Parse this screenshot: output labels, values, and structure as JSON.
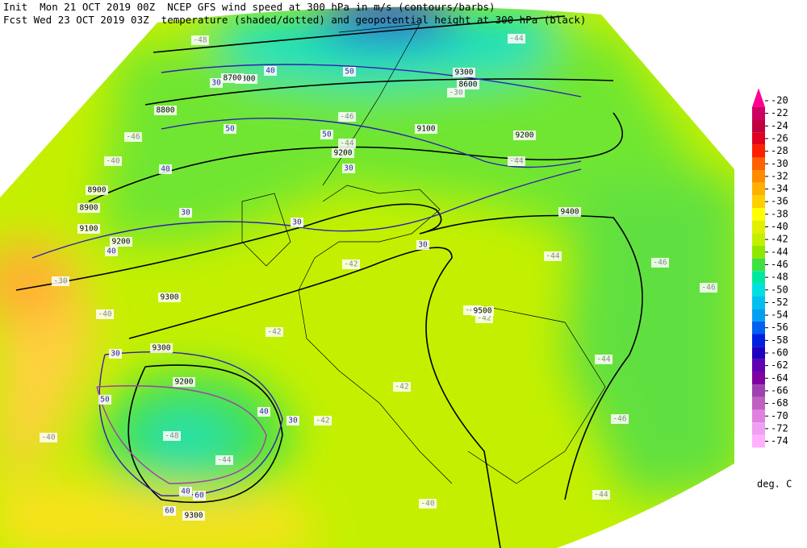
{
  "header": {
    "line1": "Init  Mon 21 OCT 2019 00Z  NCEP GFS wind speed at 300 hPa in m/s (contours/barbs)",
    "line2": "Fcst Wed 23 OCT 2019 03Z  temperature (shaded/dotted) and geopotential height at 300 hPa (black)"
  },
  "colorbar": {
    "labels": [
      "-20",
      "-22",
      "-24",
      "-26",
      "-28",
      "-30",
      "-32",
      "-34",
      "-36",
      "-38",
      "-40",
      "-42",
      "-44",
      "-46",
      "-48",
      "-50",
      "-52",
      "-54",
      "-56",
      "-58",
      "-60",
      "-62",
      "-64",
      "-66",
      "-68",
      "-70",
      "-72",
      "-74"
    ],
    "colors": [
      "#ff0090",
      "#d00060",
      "#c00040",
      "#e00020",
      "#ff2000",
      "#ff6000",
      "#ff8c00",
      "#ffb000",
      "#ffd000",
      "#ffff00",
      "#e0f000",
      "#c4f000",
      "#90e800",
      "#40e040",
      "#00e8a0",
      "#00e0e0",
      "#00c0f0",
      "#00a0f0",
      "#0060f0",
      "#0020e0",
      "#2000c0",
      "#6000b0",
      "#8000a0",
      "#a040b0",
      "#c060c0",
      "#e080e0",
      "#f0a0f0",
      "#ffb0ff"
    ],
    "unit": "deg. C"
  },
  "map_labels": [
    "-48",
    "-46",
    "-46",
    "-44",
    "-44",
    "-40",
    "-40",
    "-42",
    "-42",
    "-42",
    "-42",
    "-44",
    "-44",
    "-46",
    "-46",
    "-46",
    "-44",
    "-40",
    "-44",
    "-48",
    "-30",
    "-30",
    "-40",
    "-42",
    "-42",
    "-44",
    "9200",
    "9200",
    "9300",
    "9300",
    "9400",
    "9500",
    "9100",
    "8900",
    "8900",
    "8800",
    "8700",
    "8600",
    "9100",
    "9200",
    "9200",
    "9300",
    "9300",
    "9300",
    "30",
    "30",
    "30",
    "30",
    "30",
    "40",
    "40",
    "40",
    "40",
    "50",
    "50",
    "50",
    "50",
    "60",
    "60",
    "30",
    "40",
    "30"
  ]
}
